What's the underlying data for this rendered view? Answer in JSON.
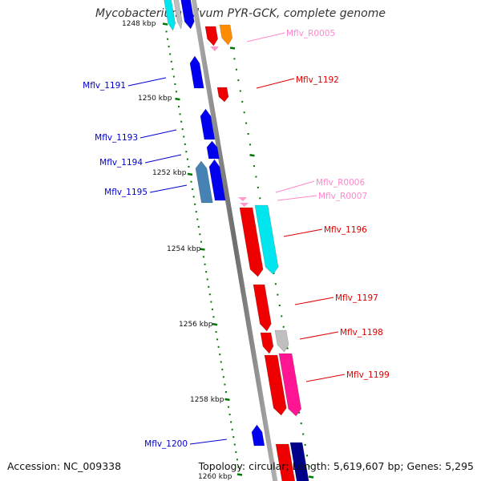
{
  "title": "Mycobacterium gilvum PYR-GCK, complete genome",
  "footer": {
    "accession": "Accession: NC_009338",
    "topology": "Topology: circular; Length: 5,619,607 bp; Genes: 5,295"
  },
  "scale_labels": [
    "1248 kbp",
    "1250 kbp",
    "1252 kbp",
    "1254 kbp",
    "1256 kbp",
    "1258 kbp",
    "1260 kbp"
  ],
  "gene_labels": [
    {
      "id": "mflv-r0005",
      "text": "Mflv_R0005",
      "color": "#ff88cc"
    },
    {
      "id": "mflv-1191",
      "text": "Mflv_1191",
      "color": "#0000cc"
    },
    {
      "id": "mflv-1192",
      "text": "Mflv_1192",
      "color": "#dd0000"
    },
    {
      "id": "mflv-1193",
      "text": "Mflv_1193",
      "color": "#0000cc"
    },
    {
      "id": "mflv-1194",
      "text": "Mflv_1194",
      "color": "#0000cc"
    },
    {
      "id": "mflv-1195",
      "text": "Mflv_1195",
      "color": "#0000cc"
    },
    {
      "id": "mflv-r0006",
      "text": "Mflv_R0006",
      "color": "#ff88cc"
    },
    {
      "id": "mflv-r0007",
      "text": "Mflv_R0007",
      "color": "#ff88cc"
    },
    {
      "id": "mflv-1196",
      "text": "Mflv_1196",
      "color": "#dd0000"
    },
    {
      "id": "mflv-1197",
      "text": "Mflv_1197",
      "color": "#dd0000"
    },
    {
      "id": "mflv-1198",
      "text": "Mflv_1198",
      "color": "#dd0000"
    },
    {
      "id": "mflv-1199",
      "text": "Mflv_1199",
      "color": "#dd0000"
    },
    {
      "id": "mflv-1200",
      "text": "Mflv_1200",
      "color": "#0000cc"
    }
  ],
  "colors": {
    "backbone": "#8c8c8c",
    "tick": "#007700",
    "forward_gene": "#ee0000",
    "reverse_gene": "#0000ee",
    "cyan_gene": "#00e5ee",
    "orange_gene": "#ff8c00",
    "grey_gene": "#bfbfbf",
    "magenta_gene": "#ff1493",
    "steelblue_gene": "#4682b4",
    "navy_gene": "#00008b",
    "rna": "#ff99cc"
  }
}
